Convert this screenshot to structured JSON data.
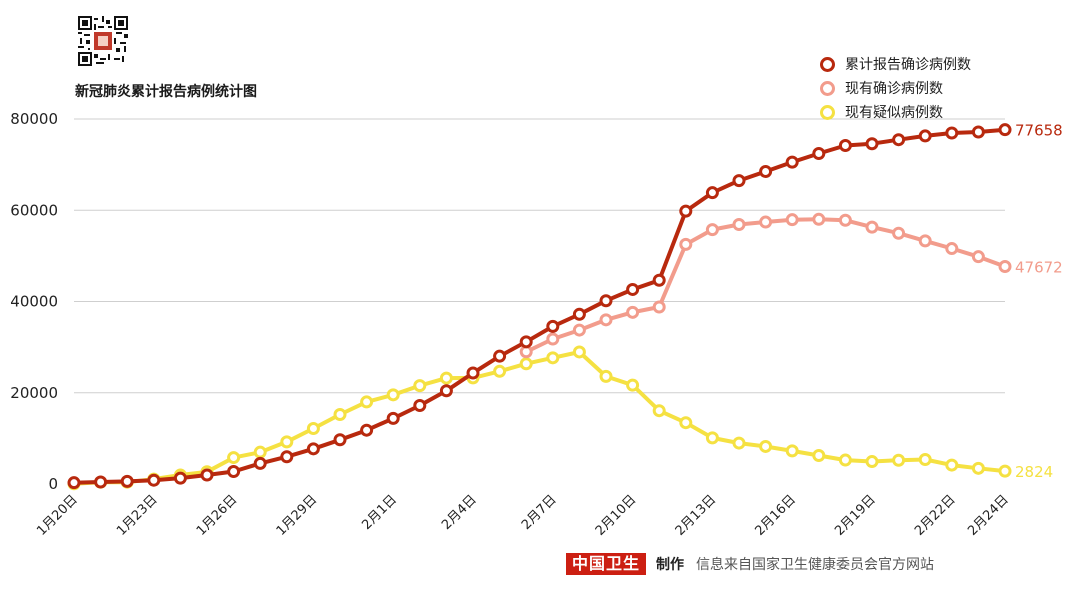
{
  "title": "新冠肺炎累计报告病例统计图",
  "footer": {
    "brand": "中国卫生",
    "made_by": "制作",
    "source": "信息来自国家卫生健康委员会官方网站"
  },
  "colors": {
    "grid": "#cfcfcf",
    "axis_text": "#222222",
    "brand_red": "#cc1f12"
  },
  "chart_data": {
    "type": "line",
    "title": "新冠肺炎累计报告病例统计图",
    "xlabel": "",
    "ylabel": "",
    "ylim": [
      0,
      80000
    ],
    "yticks": [
      0,
      20000,
      40000,
      60000,
      80000
    ],
    "grid": true,
    "legend_position": "top-right",
    "categories": [
      "1月20日",
      "1月21日",
      "1月22日",
      "1月23日",
      "1月24日",
      "1月25日",
      "1月26日",
      "1月27日",
      "1月28日",
      "1月29日",
      "1月30日",
      "1月31日",
      "2月1日",
      "2月2日",
      "2月3日",
      "2月4日",
      "2月5日",
      "2月6日",
      "2月7日",
      "2月8日",
      "2月9日",
      "2月10日",
      "2月11日",
      "2月12日",
      "2月13日",
      "2月14日",
      "2月15日",
      "2月16日",
      "2月17日",
      "2月18日",
      "2月19日",
      "2月20日",
      "2月21日",
      "2月22日",
      "2月23日",
      "2月24日"
    ],
    "x_tick_labels": [
      "1月20日",
      "1月23日",
      "1月26日",
      "1月29日",
      "2月1日",
      "2月4日",
      "2月7日",
      "2月10日",
      "2月13日",
      "2月16日",
      "2月19日",
      "2月22日",
      "2月24日"
    ],
    "x_tick_indices": [
      0,
      3,
      6,
      9,
      12,
      15,
      18,
      21,
      24,
      27,
      30,
      33,
      35
    ],
    "series": [
      {
        "name": "累计报告确诊病例数",
        "color": "#b8290e",
        "end_label": "77658",
        "values": [
          291,
          440,
          571,
          830,
          1287,
          1975,
          2744,
          4515,
          5974,
          7711,
          9692,
          11791,
          14380,
          17205,
          20438,
          24324,
          28018,
          31161,
          34546,
          37198,
          40171,
          42638,
          44653,
          59804,
          63851,
          66492,
          68500,
          70548,
          72436,
          74185,
          74576,
          75465,
          76288,
          76936,
          77150,
          77658
        ]
      },
      {
        "name": "现有确诊病例数",
        "color": "#f29c8c",
        "end_label": "47672",
        "values": [
          null,
          null,
          null,
          null,
          null,
          null,
          null,
          null,
          null,
          null,
          null,
          null,
          null,
          null,
          null,
          null,
          null,
          28985,
          31774,
          33738,
          35982,
          37626,
          38800,
          52526,
          55748,
          56873,
          57416,
          57934,
          58016,
          57805,
          56303,
          54965,
          53284,
          51606,
          49824,
          47672
        ]
      },
      {
        "name": "现有疑似病例数",
        "color": "#f5e142",
        "end_label": "2824",
        "values": [
          54,
          393,
          393,
          1072,
          1965,
          2684,
          5794,
          6973,
          9239,
          12167,
          15238,
          17988,
          19544,
          21558,
          23214,
          23260,
          24702,
          26359,
          27657,
          28942,
          23589,
          21675,
          16067,
          13435,
          10109,
          8969,
          8228,
          7264,
          6242,
          5248,
          4922,
          5206,
          5365,
          4148,
          3434,
          2824
        ]
      }
    ]
  }
}
